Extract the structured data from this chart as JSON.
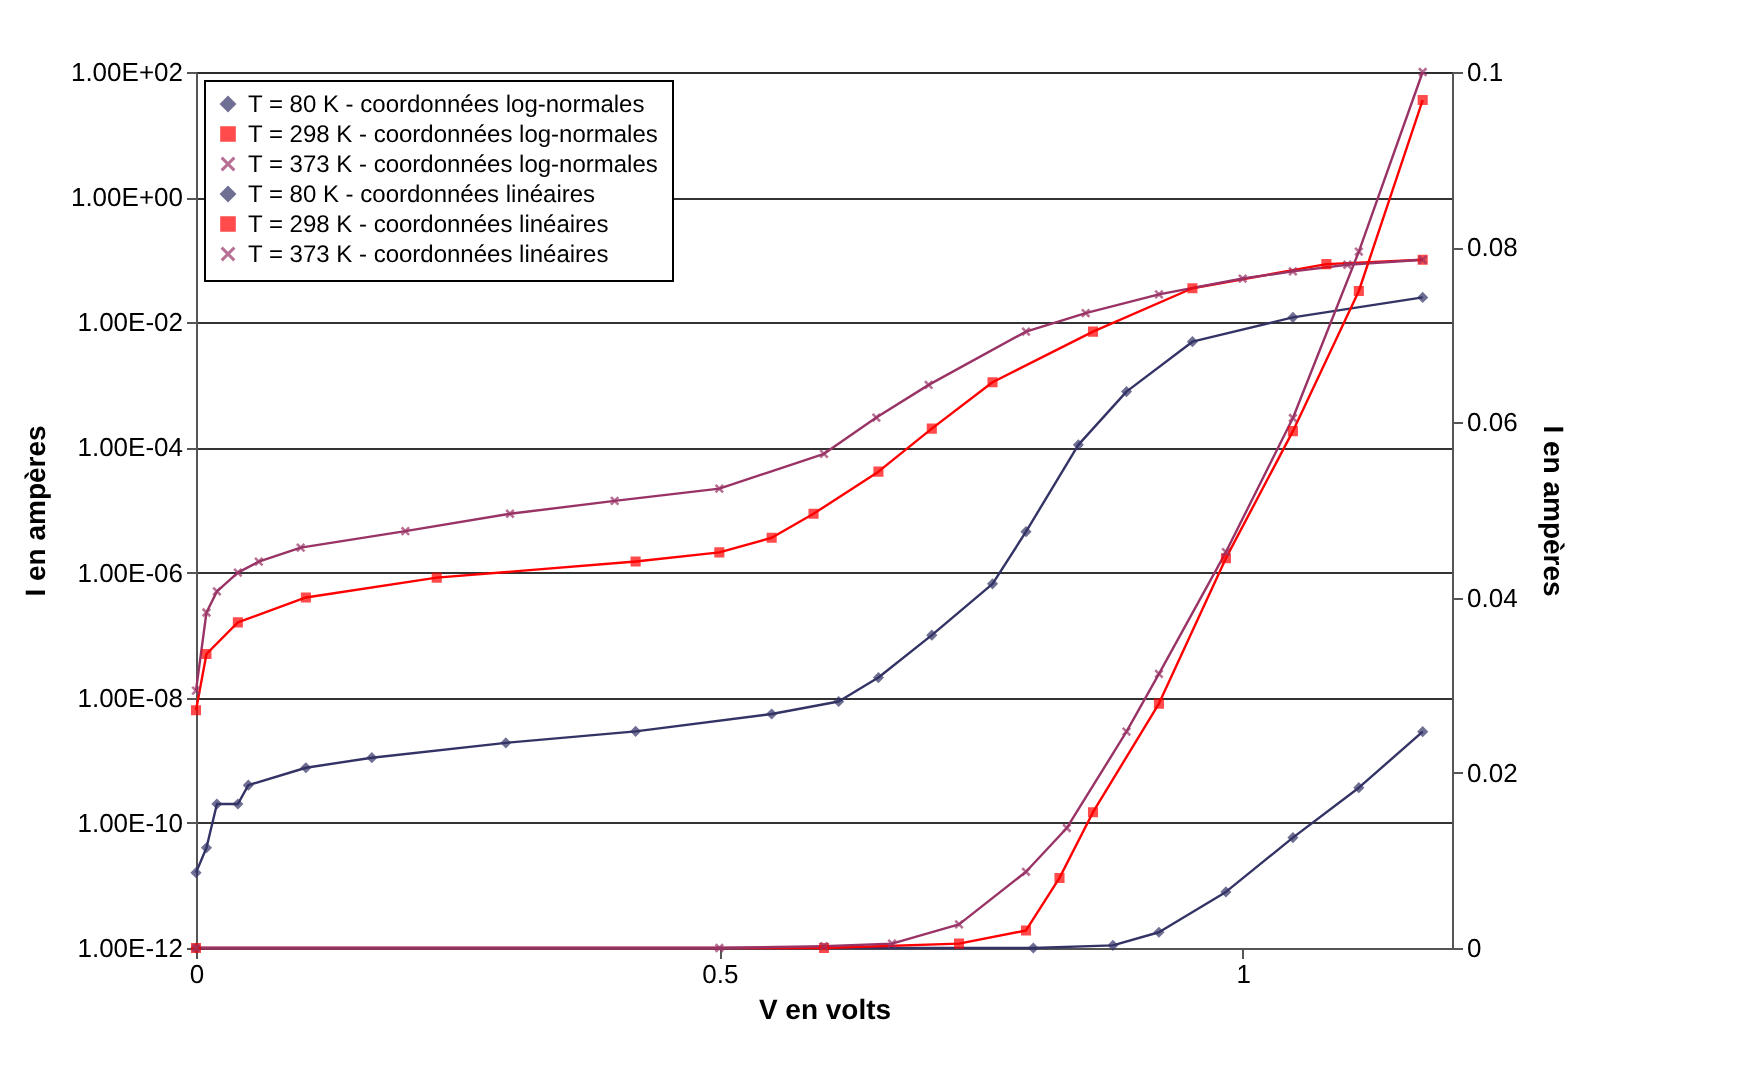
{
  "chart_data": {
    "type": "line",
    "xlabel": "V en volts",
    "ylabel": "I en ampères",
    "y2label": "I en ampères",
    "xlim": [
      0,
      1.2
    ],
    "xticks": [
      0,
      0.5,
      1
    ],
    "ylim": [
      1e-12,
      100
    ],
    "yticks": [
      {
        "value": 1e-12,
        "label": "1.00E-12"
      },
      {
        "value": 1e-10,
        "label": "1.00E-10"
      },
      {
        "value": 1e-08,
        "label": "1.00E-08"
      },
      {
        "value": 1e-06,
        "label": "1.00E-06"
      },
      {
        "value": 0.0001,
        "label": "1.00E-04"
      },
      {
        "value": 0.01,
        "label": "1.00E-02"
      },
      {
        "value": 1,
        "label": "1.00E+00"
      },
      {
        "value": 100,
        "label": "1.00E+02"
      }
    ],
    "y2lim": [
      0,
      0.1
    ],
    "y2ticks": [
      0,
      0.02,
      0.04,
      0.06,
      0.08,
      0.1
    ],
    "log": "y",
    "grid": "y",
    "legend": "top left",
    "line_style": "solid",
    "series": [
      {
        "name": "T = 80 K - coordonnées log-normales",
        "color": "#333366",
        "marker": "diamond",
        "x": [
          0,
          0.01,
          0.02,
          0.04,
          0.05,
          0.105,
          0.168,
          0.296,
          0.42,
          0.55,
          0.614,
          0.652,
          0.703,
          0.761,
          0.793,
          0.843,
          0.889,
          0.952,
          1.048,
          1.172
        ],
        "values": [
          1.6e-11,
          4e-11,
          2e-10,
          2e-10,
          4e-10,
          7.6e-10,
          1.1e-09,
          1.9e-09,
          2.9e-09,
          5.5e-09,
          8.7e-09,
          2.1e-08,
          1e-07,
          6.6e-07,
          4.5e-06,
          0.00011,
          0.00078,
          0.0049,
          0.012,
          0.025
        ]
      },
      {
        "name": "T = 298 K - coordonnées log-normales",
        "color": "#ff0000",
        "marker": "square",
        "x": [
          0,
          0.01,
          0.04,
          0.105,
          0.23,
          0.42,
          0.5,
          0.55,
          0.59,
          0.652,
          0.703,
          0.761,
          0.857,
          0.952,
          1.08,
          1.172
        ],
        "values": [
          6.3e-09,
          5e-08,
          1.6e-07,
          4e-07,
          8.3e-07,
          1.5e-06,
          2.1e-06,
          3.6e-06,
          8.7e-06,
          4.1e-05,
          0.0002,
          0.0011,
          0.0071,
          0.035,
          0.085,
          0.1
        ]
      },
      {
        "name": "T = 373 K - coordonnées log-normales",
        "color": "#993366",
        "marker": "cross",
        "x": [
          0,
          0.01,
          0.02,
          0.04,
          0.06,
          0.1,
          0.2,
          0.3,
          0.4,
          0.5,
          0.6,
          0.65,
          0.7,
          0.793,
          0.85,
          0.92,
          1.0,
          1.048,
          1.1,
          1.172
        ],
        "values": [
          1.3e-08,
          2.3e-07,
          5e-07,
          1e-06,
          1.5e-06,
          2.5e-06,
          4.6e-06,
          8.7e-06,
          1.4e-05,
          2.2e-05,
          7.9e-05,
          0.0003,
          0.001,
          0.0071,
          0.014,
          0.028,
          0.05,
          0.065,
          0.083,
          0.1
        ]
      },
      {
        "name": "T = 80 K - coordonnées linéaires",
        "color": "#333366",
        "marker": "diamond",
        "axis": "y2",
        "x": [
          0,
          0.8,
          0.876,
          0.92,
          0.984,
          1.048,
          1.111,
          1.172
        ],
        "values": [
          0,
          0,
          0.0003,
          0.0018,
          0.0064,
          0.0126,
          0.0183,
          0.0247
        ]
      },
      {
        "name": "T = 298 K - coordonnées linéaires",
        "color": "#ff0000",
        "marker": "square",
        "axis": "y2",
        "x": [
          0,
          0.6,
          0.729,
          0.793,
          0.825,
          0.857,
          0.92,
          0.984,
          1.048,
          1.111,
          1.172
        ],
        "values": [
          0,
          0,
          0.0005,
          0.002,
          0.008,
          0.0155,
          0.0279,
          0.0445,
          0.059,
          0.075,
          0.0968
        ]
      },
      {
        "name": "T = 373 K - coordonnées linéaires",
        "color": "#993366",
        "marker": "cross",
        "axis": "y2",
        "x": [
          0,
          0.5,
          0.6,
          0.665,
          0.729,
          0.793,
          0.832,
          0.889,
          0.92,
          0.984,
          1.048,
          1.111,
          1.172
        ],
        "values": [
          0,
          0,
          0.0002,
          0.0005,
          0.0027,
          0.0087,
          0.0137,
          0.0247,
          0.0313,
          0.0452,
          0.0605,
          0.0795,
          0.1
        ]
      }
    ]
  }
}
